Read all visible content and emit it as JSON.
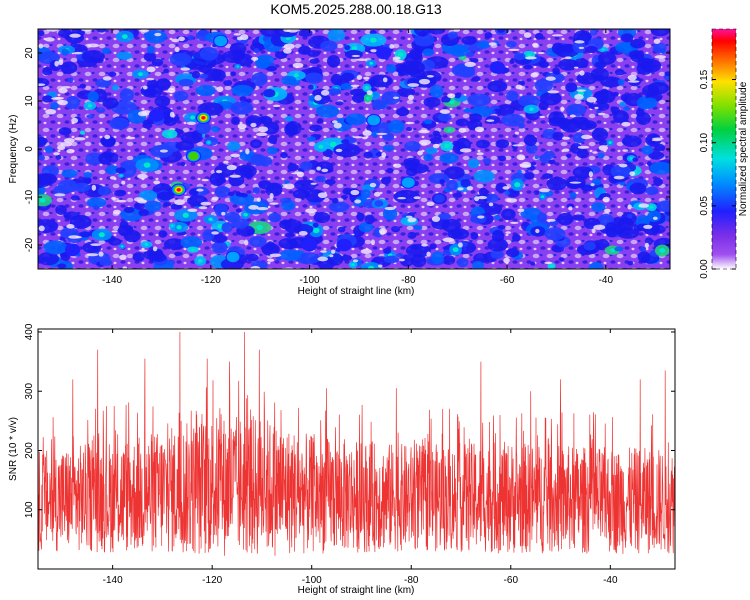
{
  "title": "KOM5.2025.288.00.18.G13",
  "colors": {
    "snr_line": "#ee3333",
    "background": "#ffffff",
    "heatmap_base": "#8a3ff0"
  },
  "colorbar": {
    "label": "Normalized spectral amplitude",
    "ticks": [
      "0.00",
      "0.05",
      "0.10",
      "0.15"
    ],
    "tick_values": [
      0.0,
      0.05,
      0.1,
      0.15
    ],
    "range": [
      0.0,
      0.19
    ]
  },
  "chart_data": [
    {
      "type": "heatmap",
      "xlabel": "Height of straight line (km)",
      "ylabel": "Frequency (Hz)",
      "xlim": [
        -155,
        -27
      ],
      "ylim": [
        -25,
        25
      ],
      "x_ticks": [
        "-140",
        "-120",
        "-100",
        "-80",
        "-60",
        "-40"
      ],
      "x_tick_values": [
        -140,
        -120,
        -100,
        -80,
        -60,
        -40
      ],
      "y_ticks": [
        "-20",
        "-10",
        "0",
        "10",
        "20"
      ],
      "y_tick_values": [
        -20,
        -10,
        0,
        10,
        20
      ],
      "hotspots": [
        {
          "x": -121.5,
          "y": 6.5,
          "v": 0.18
        },
        {
          "x": -126.5,
          "y": -8.5,
          "v": 0.17
        },
        {
          "x": -123.5,
          "y": -1.5,
          "v": 0.12
        },
        {
          "x": -115.5,
          "y": -22.5,
          "v": 0.11
        },
        {
          "x": -118.0,
          "y": 22.5,
          "v": 0.09
        },
        {
          "x": -87.0,
          "y": 6.0,
          "v": 0.09
        },
        {
          "x": -80.0,
          "y": -7.0,
          "v": 0.09
        },
        {
          "x": -85.0,
          "y": 20.0,
          "v": 0.08
        },
        {
          "x": -62.0,
          "y": 17.0,
          "v": 0.08
        },
        {
          "x": -93.0,
          "y": -20.0,
          "v": 0.08
        },
        {
          "x": -131.0,
          "y": 7.0,
          "v": 0.07
        },
        {
          "x": -148.0,
          "y": -21.0,
          "v": 0.07
        },
        {
          "x": -100.0,
          "y": -20.0,
          "v": 0.07
        }
      ]
    },
    {
      "type": "line",
      "xlabel": "Height of straight line (km)",
      "ylabel": "SNR (10 * v/v)",
      "xlim": [
        -155,
        -27
      ],
      "ylim": [
        0,
        405
      ],
      "x_ticks": [
        "-140",
        "-120",
        "-100",
        "-80",
        "-60",
        "-40"
      ],
      "x_tick_values": [
        -140,
        -120,
        -100,
        -80,
        -60,
        -40
      ],
      "y_ticks": [
        "100",
        "200",
        "300",
        "400"
      ],
      "y_tick_values": [
        100,
        200,
        300,
        400
      ],
      "noise_envelope": [
        {
          "x": -155,
          "mean": 115,
          "spread": 85
        },
        {
          "x": -135,
          "mean": 125,
          "spread": 100
        },
        {
          "x": -120,
          "mean": 140,
          "spread": 120
        },
        {
          "x": -110,
          "mean": 140,
          "spread": 120
        },
        {
          "x": -100,
          "mean": 125,
          "spread": 100
        },
        {
          "x": -80,
          "mean": 120,
          "spread": 90
        },
        {
          "x": -60,
          "mean": 120,
          "spread": 95
        },
        {
          "x": -40,
          "mean": 115,
          "spread": 90
        },
        {
          "x": -27,
          "mean": 115,
          "spread": 90
        }
      ],
      "peaks": [
        {
          "x": -126.5,
          "y": 400
        },
        {
          "x": -113.5,
          "y": 400
        },
        {
          "x": -110.5,
          "y": 370
        },
        {
          "x": -116.5,
          "y": 350
        },
        {
          "x": -133.5,
          "y": 355
        },
        {
          "x": -143.0,
          "y": 370
        },
        {
          "x": -121.0,
          "y": 355
        },
        {
          "x": -66.0,
          "y": 350
        },
        {
          "x": -29.0,
          "y": 335
        },
        {
          "x": -148.0,
          "y": 320
        },
        {
          "x": -50.0,
          "y": 320
        },
        {
          "x": -34.0,
          "y": 320
        },
        {
          "x": -97.0,
          "y": 305
        },
        {
          "x": -83.0,
          "y": 305
        },
        {
          "x": -56.0,
          "y": 300
        }
      ]
    }
  ]
}
